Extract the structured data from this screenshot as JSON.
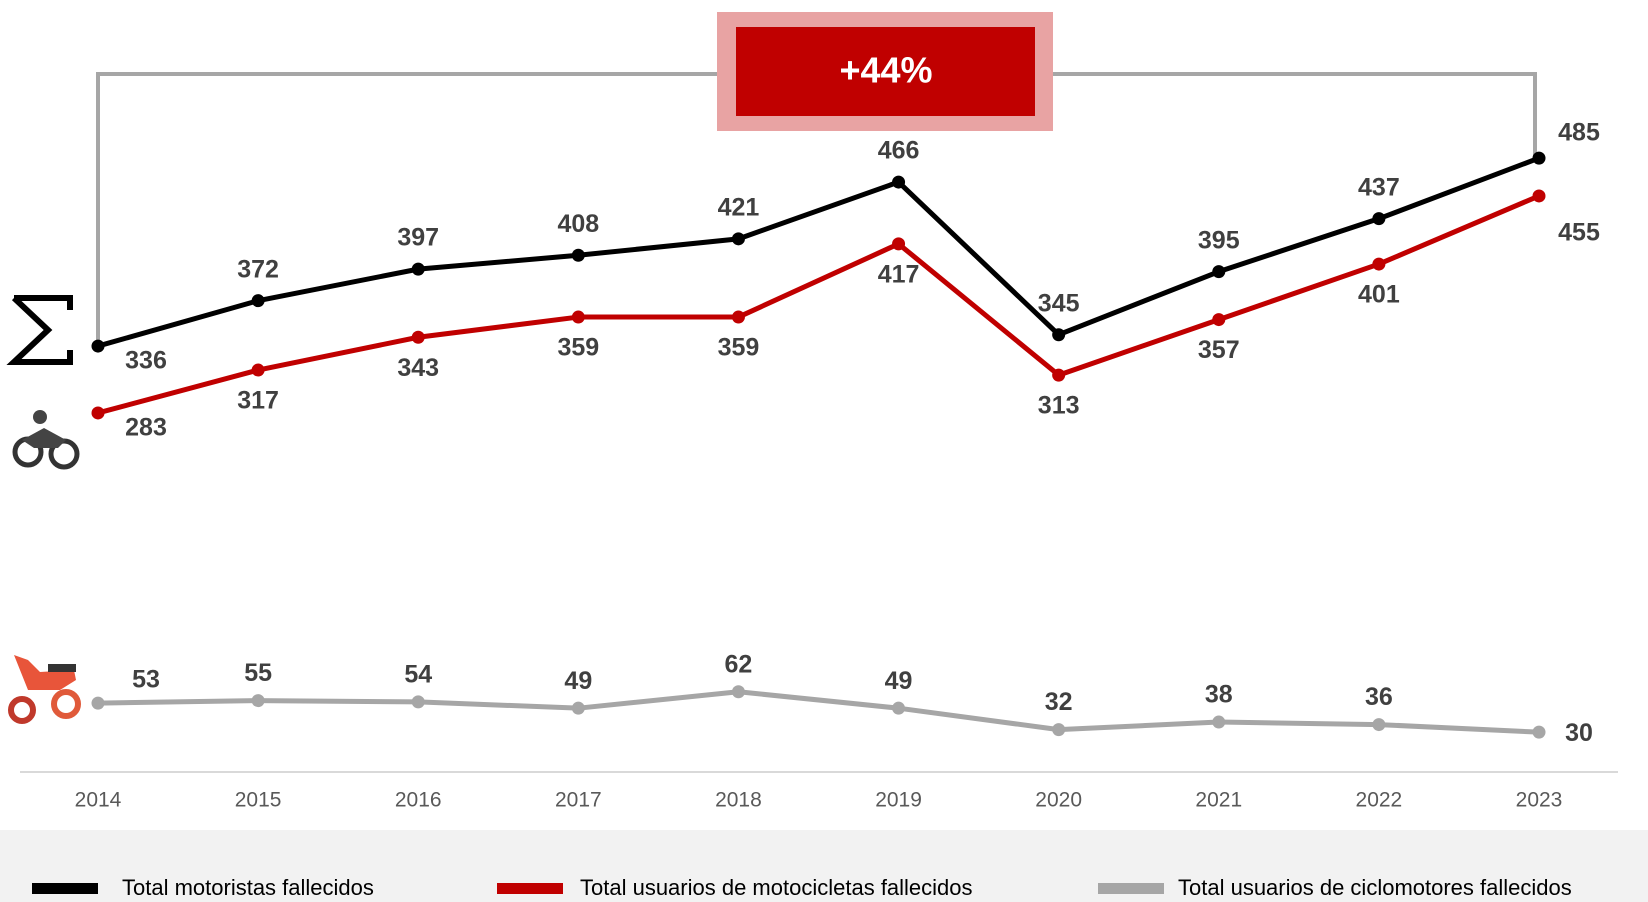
{
  "chart_data": {
    "type": "line",
    "annotation": "+44%",
    "categories": [
      "2014",
      "2015",
      "2016",
      "2017",
      "2018",
      "2019",
      "2020",
      "2021",
      "2022",
      "2023"
    ],
    "series": [
      {
        "name": "Total motoristas fallecidos",
        "color": "#000000",
        "values": [
          336,
          372,
          397,
          408,
          421,
          466,
          345,
          395,
          437,
          485
        ]
      },
      {
        "name": "Total usuarios de motocicletas fallecidos",
        "color": "#c00000",
        "values": [
          283,
          317,
          343,
          359,
          359,
          417,
          313,
          357,
          401,
          455
        ]
      },
      {
        "name": "Total usuarios de ciclomotores fallecidos",
        "color": "#a6a6a6",
        "values": [
          53,
          55,
          54,
          49,
          62,
          49,
          32,
          38,
          36,
          30
        ]
      }
    ],
    "ylim": [
      0,
      600
    ],
    "legend": "bottom",
    "grid": false
  }
}
